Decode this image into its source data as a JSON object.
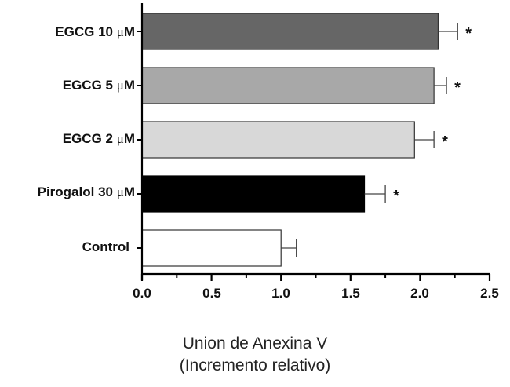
{
  "chart_data": {
    "type": "bar",
    "orientation": "horizontal",
    "title": "",
    "categories": [
      "EGCG 10 μM",
      "EGCG 5 μM",
      "EGCG 2 μM",
      "Pirogalol 30 μM",
      "Control"
    ],
    "category_parts": [
      {
        "prefix": "EGCG 10 ",
        "unit": "μ",
        "suffix": "M"
      },
      {
        "prefix": "EGCG 5 ",
        "unit": "μ",
        "suffix": "M"
      },
      {
        "prefix": "EGCG 2 ",
        "unit": "μ",
        "suffix": "M"
      },
      {
        "prefix": "Pirogalol 30 ",
        "unit": "μ",
        "suffix": "M"
      },
      {
        "prefix": "Control ",
        "unit": "",
        "suffix": ""
      }
    ],
    "values": [
      2.13,
      2.1,
      1.96,
      1.6,
      1.0
    ],
    "error_upper": [
      2.27,
      2.19,
      2.1,
      1.75,
      1.11
    ],
    "significance": [
      "*",
      "*",
      "*",
      "*",
      ""
    ],
    "fill_colors": [
      "#666666",
      "#a8a8a8",
      "#d8d8d8",
      "#000000",
      "#ffffff"
    ],
    "xlabel_line1": "Union de Anexina V",
    "xlabel_line2": "(Incremento relativo)",
    "ylabel": "",
    "xlim": [
      0.0,
      2.5
    ],
    "x_ticks": [
      "0.0",
      "0.5",
      "1.0",
      "1.5",
      "2.0",
      "2.5"
    ],
    "x_minor_ticks": [
      0.25,
      0.75,
      1.25,
      1.75,
      2.25
    ],
    "grid": false,
    "legend": null
  }
}
